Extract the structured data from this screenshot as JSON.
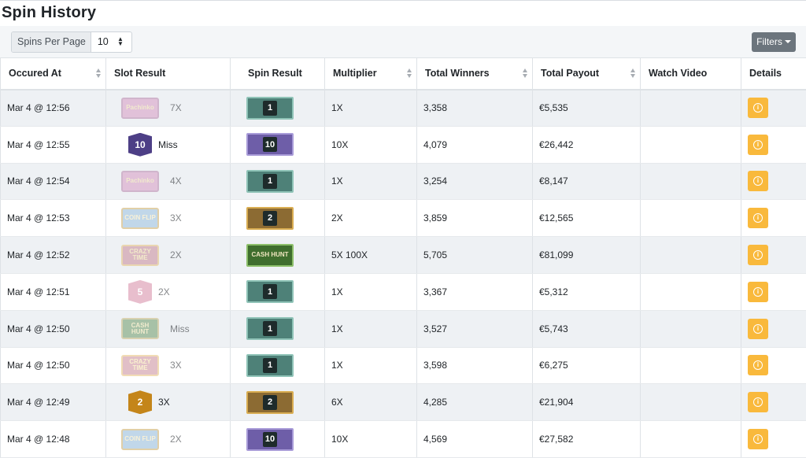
{
  "page": {
    "title": "Spin History"
  },
  "toolbar": {
    "spins_per_page_label": "Spins Per Page",
    "spins_per_page_value": "10",
    "filters_label": "Filters"
  },
  "table": {
    "headers": [
      "Occured At",
      "Slot Result",
      "Spin Result",
      "Multiplier",
      "Total Winners",
      "Total Payout",
      "Watch Video",
      "Details"
    ],
    "rows": [
      {
        "occured_at": "Mar 4 @ 12:56",
        "slot": "Pachinko",
        "slot_result": "7X",
        "spin": "1",
        "multiplier": "1X",
        "winners": "3,358",
        "payout": "€5,535"
      },
      {
        "occured_at": "Mar 4 @ 12:55",
        "slot": "10",
        "slot_result": "Miss",
        "spin": "10",
        "multiplier": "10X",
        "winners": "4,079",
        "payout": "€26,442"
      },
      {
        "occured_at": "Mar 4 @ 12:54",
        "slot": "Pachinko",
        "slot_result": "4X",
        "spin": "1",
        "multiplier": "1X",
        "winners": "3,254",
        "payout": "€8,147"
      },
      {
        "occured_at": "Mar 4 @ 12:53",
        "slot": "COIN FLIP",
        "slot_result": "3X",
        "spin": "2",
        "multiplier": "2X",
        "winners": "3,859",
        "payout": "€12,565"
      },
      {
        "occured_at": "Mar 4 @ 12:52",
        "slot": "CRAZY TIME",
        "slot_result": "2X",
        "spin": "CASH HUNT",
        "multiplier": "5X 100X",
        "winners": "5,705",
        "payout": "€81,099"
      },
      {
        "occured_at": "Mar 4 @ 12:51",
        "slot": "5",
        "slot_result": "2X",
        "spin": "1",
        "multiplier": "1X",
        "winners": "3,367",
        "payout": "€5,312"
      },
      {
        "occured_at": "Mar 4 @ 12:50",
        "slot": "CASH HUNT",
        "slot_result": "Miss",
        "spin": "1",
        "multiplier": "1X",
        "winners": "3,527",
        "payout": "€5,743"
      },
      {
        "occured_at": "Mar 4 @ 12:50",
        "slot": "CRAZY TIME",
        "slot_result": "3X",
        "spin": "1",
        "multiplier": "1X",
        "winners": "3,598",
        "payout": "€6,275"
      },
      {
        "occured_at": "Mar 4 @ 12:49",
        "slot": "2",
        "slot_result": "3X",
        "spin": "2",
        "multiplier": "6X",
        "winners": "4,285",
        "payout": "€21,904"
      },
      {
        "occured_at": "Mar 4 @ 12:48",
        "slot": "COIN FLIP",
        "slot_result": "2X",
        "spin": "10",
        "multiplier": "10X",
        "winners": "4,569",
        "payout": "€27,582"
      }
    ]
  },
  "colors": {
    "filters_button": "#6c757d",
    "details_button": "#f9b93c",
    "stripe": "#eef1f4"
  },
  "icons": {
    "details": "info-circle-icon",
    "sort": "sort-arrows-icon",
    "select_caret": "updown-caret-icon",
    "dropdown_caret": "caret-down-icon"
  }
}
